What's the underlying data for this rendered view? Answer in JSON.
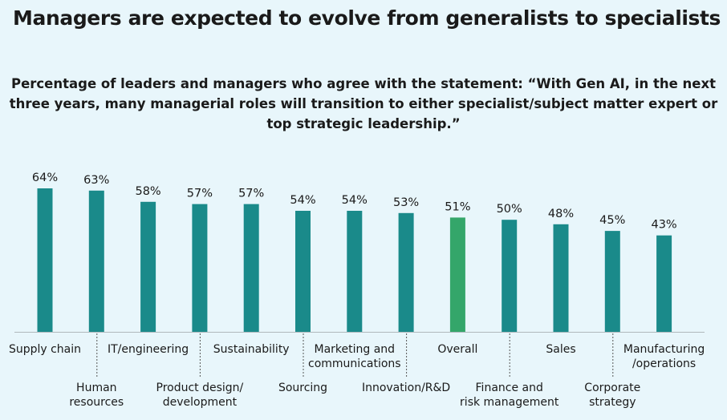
{
  "header": {
    "title": "Managers are expected to evolve from generalists to specialists",
    "subtitle_lines": [
      "Percentage of leaders and managers who agree with the statement: “With Gen AI, in the next",
      "three years, many managerial roles will transition to either specialist/subject matter expert or",
      "top strategic leadership.”"
    ]
  },
  "colors": {
    "bar": "#1a8a8a",
    "highlight": "#34a66a",
    "axis": "#b0b8bc",
    "leader": "#555555"
  },
  "chart_data": {
    "type": "bar",
    "title": "Managers are expected to evolve from generalists to specialists",
    "ylabel": "",
    "ylim": [
      0,
      64
    ],
    "categories": [
      "Supply chain",
      "Human resources",
      "IT/engineering",
      "Product design/ development",
      "Sustainability",
      "Sourcing",
      "Marketing and communications",
      "Innovation/R&D",
      "Overall",
      "Finance and risk management",
      "Sales",
      "Corporate strategy",
      "Manufacturing /operations"
    ],
    "values": [
      64,
      63,
      58,
      57,
      57,
      54,
      54,
      53,
      51,
      50,
      48,
      45,
      43
    ],
    "value_labels": [
      "64%",
      "63%",
      "58%",
      "57%",
      "57%",
      "54%",
      "54%",
      "53%",
      "51%",
      "50%",
      "48%",
      "45%",
      "43%"
    ],
    "label_lines": [
      [
        "Supply chain"
      ],
      [
        "Human",
        "resources"
      ],
      [
        "IT/engineering"
      ],
      [
        "Product design/",
        "development"
      ],
      [
        "Sustainability"
      ],
      [
        "Sourcing"
      ],
      [
        "Marketing and",
        "communications"
      ],
      [
        "Innovation/R&D"
      ],
      [
        "Overall"
      ],
      [
        "Finance and",
        "risk management"
      ],
      [
        "Sales"
      ],
      [
        "Corporate",
        "strategy"
      ],
      [
        "Manufacturing",
        "/operations"
      ]
    ],
    "highlight_category": "Overall",
    "grid": false,
    "legend": "none"
  }
}
